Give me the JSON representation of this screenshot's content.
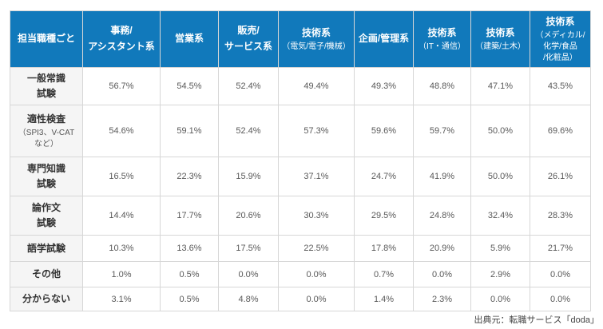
{
  "colors": {
    "header_bg": "#1179bb",
    "header_text": "#ffffff",
    "row_label_bg": "#f5f5f5",
    "border": "#d7d7d7",
    "value_text": "#595959"
  },
  "ui": {
    "table": {
      "corner": "担当職種ごと",
      "header_cells": [
        {
          "main": "事務/\nアシスタント系",
          "sub": ""
        },
        {
          "main": "営業系",
          "sub": ""
        },
        {
          "main": "販売/\nサービス系",
          "sub": ""
        },
        {
          "main": "技術系",
          "sub": "（電気/電子/機械）"
        },
        {
          "main": "企画/管理系",
          "sub": ""
        },
        {
          "main": "技術系",
          "sub": "（IT・通信）"
        },
        {
          "main": "技術系",
          "sub": "（建築/土木）"
        },
        {
          "main": "技術系",
          "sub": "（メディカル/\n化学/食品\n/化粧品）"
        }
      ],
      "row_cells": [
        {
          "label": "一般常識\n試験",
          "sub": ""
        },
        {
          "label": "適性検査",
          "sub": "（SPI3、V-CAT\nなど）"
        },
        {
          "label": "専門知識\n試験",
          "sub": ""
        },
        {
          "label": "論作文\n試験",
          "sub": ""
        },
        {
          "label": "語学試験",
          "sub": ""
        },
        {
          "label": "その他",
          "sub": ""
        },
        {
          "label": "分からない",
          "sub": ""
        }
      ]
    }
  },
  "chart_data": {
    "type": "table",
    "title": "担当職種ごと",
    "columns": [
      "事務/アシスタント系",
      "営業系",
      "販売/サービス系",
      "技術系（電気/電子/機械）",
      "企画/管理系",
      "技術系（IT・通信）",
      "技術系（建築/土木）",
      "技術系（メディカル/化学/食品/化粧品）"
    ],
    "rows": [
      "一般常識試験",
      "適性検査（SPI3、V-CATなど）",
      "専門知識試験",
      "論作文試験",
      "語学試験",
      "その他",
      "分からない"
    ],
    "values_percent": [
      [
        56.7,
        54.5,
        52.4,
        49.4,
        49.3,
        48.8,
        47.1,
        43.5
      ],
      [
        54.6,
        59.1,
        52.4,
        57.3,
        59.6,
        59.7,
        50.0,
        69.6
      ],
      [
        16.5,
        22.3,
        15.9,
        37.1,
        24.7,
        41.9,
        50.0,
        26.1
      ],
      [
        14.4,
        17.7,
        20.6,
        30.3,
        29.5,
        24.8,
        32.4,
        28.3
      ],
      [
        10.3,
        13.6,
        17.5,
        22.5,
        17.8,
        20.9,
        5.9,
        21.7
      ],
      [
        1.0,
        0.5,
        0.0,
        0.0,
        0.7,
        0.0,
        2.9,
        0.0
      ],
      [
        3.1,
        0.5,
        4.8,
        0.0,
        1.4,
        2.3,
        0.0,
        0.0
      ]
    ],
    "unit": "%"
  },
  "source": "出典元：転職サービス「doda」"
}
